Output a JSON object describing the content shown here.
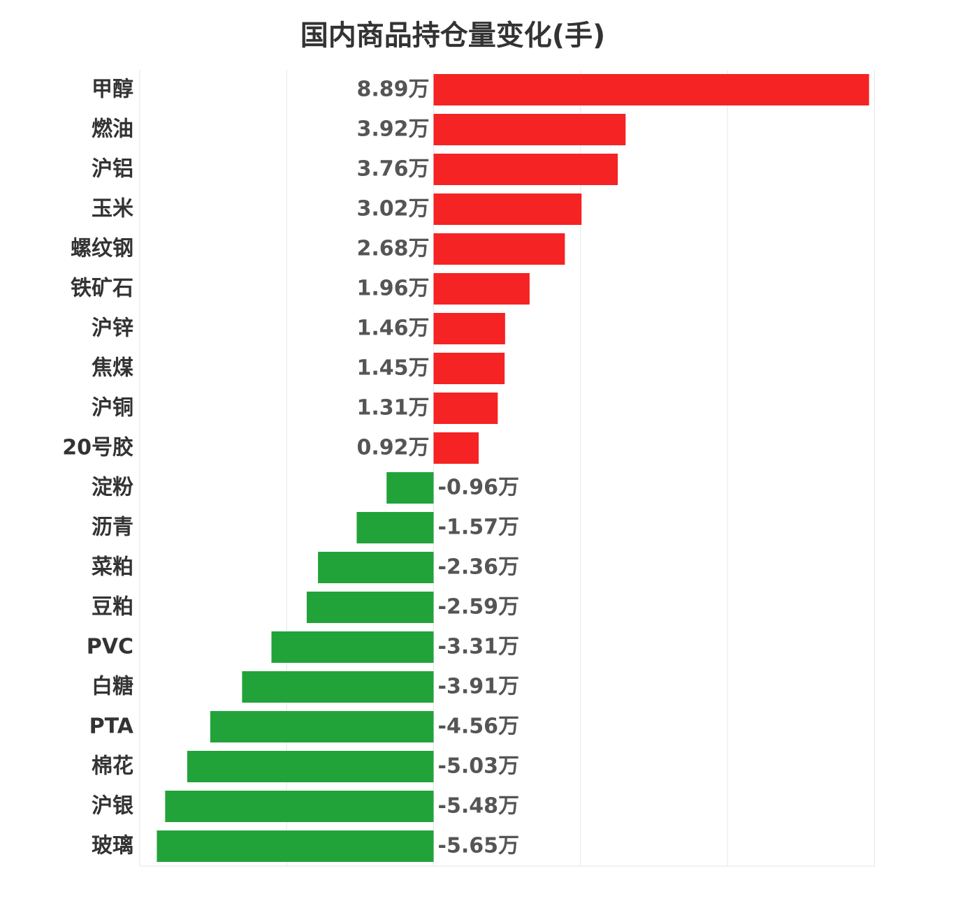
{
  "chart_data": {
    "type": "bar",
    "orientation": "horizontal",
    "title": "国内商品持仓量变化(手)",
    "categories": [
      "甲醇",
      "燃油",
      "沪铝",
      "玉米",
      "螺纹钢",
      "铁矿石",
      "沪锌",
      "焦煤",
      "沪铜",
      "20号胶",
      "淀粉",
      "沥青",
      "菜粕",
      "豆粕",
      "PVC",
      "白糖",
      "PTA",
      "棉花",
      "沪银",
      "玻璃"
    ],
    "values": [
      8.89,
      3.92,
      3.76,
      3.02,
      2.68,
      1.96,
      1.46,
      1.45,
      1.31,
      0.92,
      -0.96,
      -1.57,
      -2.36,
      -2.59,
      -3.31,
      -3.91,
      -4.56,
      -5.03,
      -5.48,
      -5.65
    ],
    "value_labels": [
      "8.89万",
      "3.92万",
      "3.76万",
      "3.02万",
      "2.68万",
      "1.96万",
      "1.46万",
      "1.45万",
      "1.31万",
      "0.92万",
      "-0.96万",
      "-1.57万",
      "-2.36万",
      "-2.59万",
      "-3.31万",
      "-3.91万",
      "-4.56万",
      "-5.03万",
      "-5.48万",
      "-5.65万"
    ],
    "unit": "万",
    "xlim": [
      -6,
      9
    ],
    "grid": true,
    "colors": {
      "positive": "#f52323",
      "negative": "#21a33a",
      "grid": "#e6e6e6"
    }
  }
}
